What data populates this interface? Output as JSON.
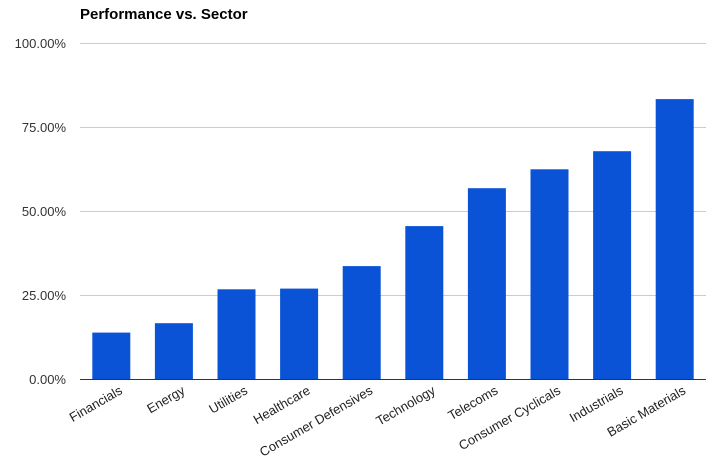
{
  "chart_data": {
    "type": "bar",
    "title": "Performance vs. Sector",
    "xlabel": "",
    "ylabel": "",
    "categories": [
      "Financials",
      "Energy",
      "Utilities",
      "Healthcare",
      "Consumer Defensives",
      "Technology",
      "Telecoms",
      "Consumer Cyclicals",
      "Industrials",
      "Basic Materials"
    ],
    "values": [
      13.8,
      16.6,
      26.7,
      26.9,
      33.6,
      45.5,
      56.8,
      62.4,
      67.8,
      83.3
    ],
    "ylim": [
      0,
      100
    ],
    "yticks": [
      0,
      25,
      50,
      75,
      100
    ],
    "ytick_labels": [
      "0.00%",
      "25.00%",
      "50.00%",
      "75.00%",
      "100.00%"
    ],
    "grid": true,
    "legend": "none",
    "bar_color": "#0a53d6",
    "grid_color": "#cccccc"
  }
}
